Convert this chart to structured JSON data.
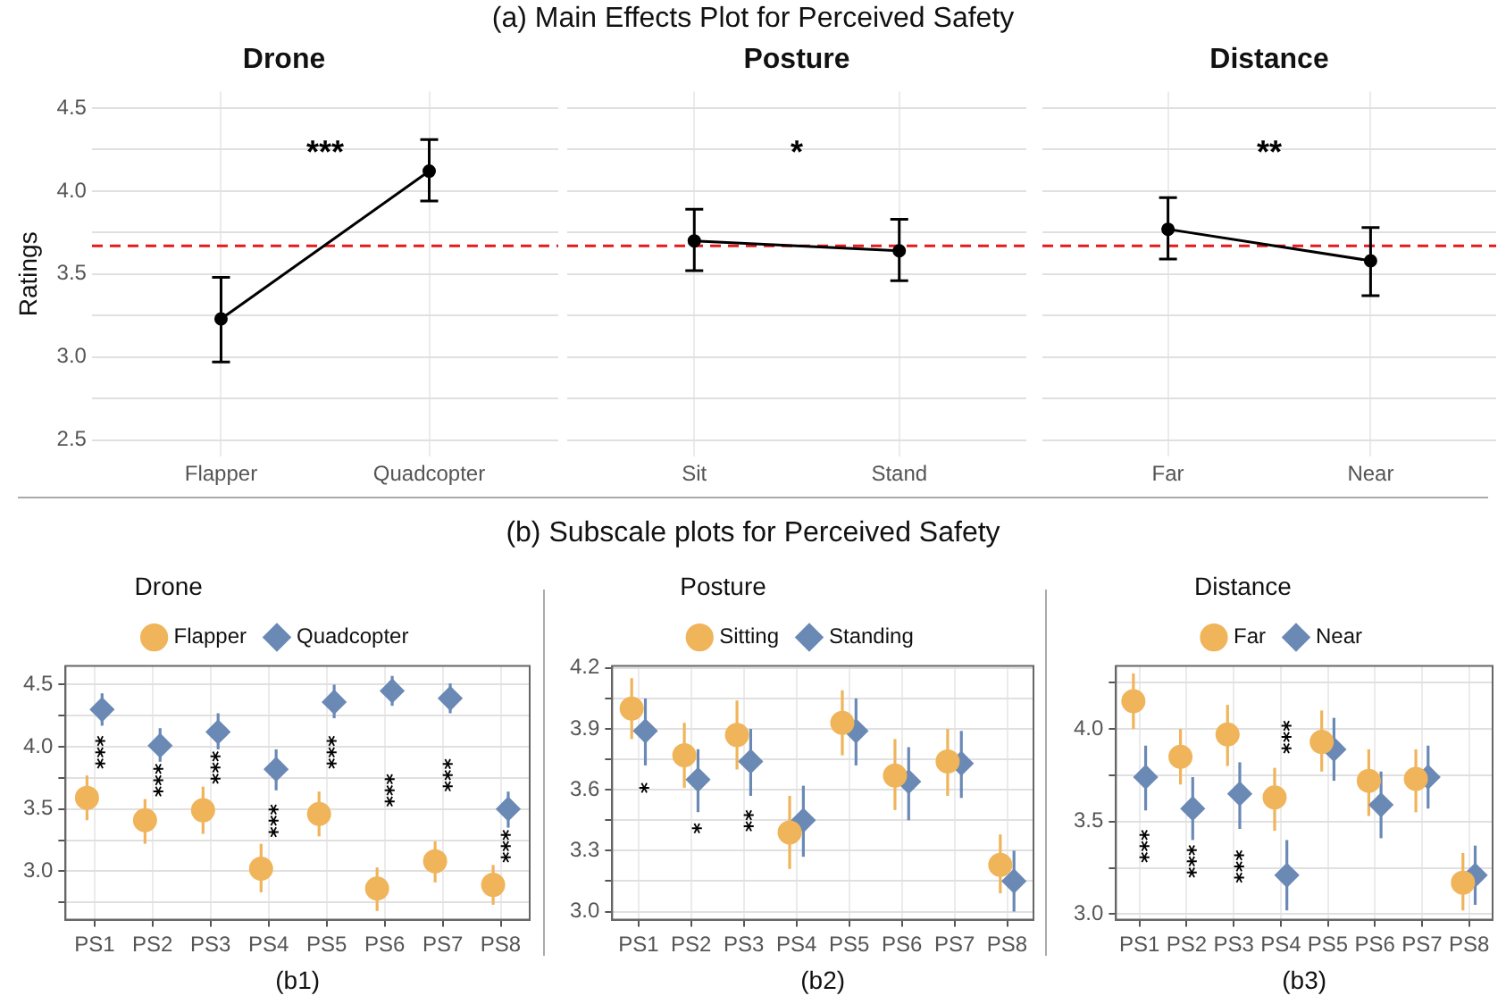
{
  "chart_data": [
    {
      "type": "line",
      "title": "Drone",
      "ylabel": "Ratings",
      "annotations": [
        "(a) Main Effects Plot for Perceived Safety",
        "***"
      ],
      "categories": [
        "Flapper",
        "Quadcopter"
      ],
      "marker": "circle",
      "line_style": "solid",
      "grid": true,
      "series": [
        {
          "color": "#000000",
          "values": [
            3.23,
            4.12
          ],
          "errors": [
            [
              2.97,
              3.48
            ],
            [
              3.94,
              4.31
            ]
          ]
        }
      ],
      "ylim": [
        2.4,
        4.6
      ],
      "yticks": [
        2.5,
        {
          "value": 2.75,
          "label": null
        },
        {
          "value": 3,
          "label": "3.0"
        },
        {
          "value": 3.25,
          "label": null
        },
        3.5,
        {
          "value": 3.75,
          "label": null
        },
        {
          "value": 4,
          "label": "4.0"
        },
        {
          "value": 4.25,
          "label": null
        },
        4.5
      ],
      "ref_lines": [
        {
          "axis": "y",
          "value": 3.67,
          "color": "#e41a1c",
          "line_style": "dashed"
        }
      ]
    },
    {
      "type": "line",
      "title": "Posture",
      "annotations": [
        "*"
      ],
      "categories": [
        "Sit",
        "Stand"
      ],
      "marker": "circle",
      "line_style": "solid",
      "grid": true,
      "tick_labels": "x",
      "series": [
        {
          "color": "#000000",
          "values": [
            3.7,
            3.64
          ],
          "errors": [
            [
              3.52,
              3.89
            ],
            [
              3.46,
              3.83
            ]
          ]
        }
      ],
      "ylim": [
        2.4,
        4.6
      ],
      "yticks": [
        2.5,
        {
          "value": 2.75,
          "label": null
        },
        3.0,
        {
          "value": 3.25,
          "label": null
        },
        3.5,
        {
          "value": 3.75,
          "label": null
        },
        4.0,
        {
          "value": 4.25,
          "label": null
        },
        4.5
      ],
      "ref_lines": [
        {
          "axis": "y",
          "value": 3.67,
          "color": "#e41a1c",
          "line_style": "dashed"
        }
      ]
    },
    {
      "type": "line",
      "title": "Distance",
      "annotations": [
        "**"
      ],
      "categories": [
        "Far",
        "Near"
      ],
      "marker": "circle",
      "line_style": "solid",
      "grid": true,
      "tick_labels": "x",
      "series": [
        {
          "color": "#000000",
          "values": [
            3.77,
            3.58
          ],
          "errors": [
            [
              3.59,
              3.96
            ],
            [
              3.37,
              3.78
            ]
          ]
        }
      ],
      "ylim": [
        2.4,
        4.6
      ],
      "yticks": [
        2.5,
        {
          "value": 2.75,
          "label": null
        },
        3.0,
        {
          "value": 3.25,
          "label": null
        },
        3.5,
        {
          "value": 3.75,
          "label": null
        },
        4.0,
        {
          "value": 4.25,
          "label": null
        },
        4.5
      ],
      "ref_lines": [
        {
          "axis": "y",
          "value": 3.67,
          "color": "#e41a1c",
          "line_style": "dashed"
        }
      ]
    },
    {
      "type": "scatter",
      "xlabel": "(b1)",
      "legend": "top",
      "legend_title": "Drone",
      "grid": true,
      "annotations": [
        "(b) Subscale plots for Perceived Safety",
        "***",
        "***",
        "***",
        "***",
        "***",
        "***",
        "***",
        "***"
      ],
      "categories": [
        "PS1",
        "PS2",
        "PS3",
        "PS4",
        "PS5",
        "PS6",
        "PS7",
        "PS8"
      ],
      "series": [
        {
          "name": "Flapper",
          "color": "#f0b45a",
          "marker": "circle",
          "values": [
            3.59,
            3.41,
            3.49,
            3.02,
            3.46,
            2.86,
            3.08,
            2.89
          ],
          "errors": [
            [
              3.41,
              3.77
            ],
            [
              3.22,
              3.58
            ],
            [
              3.3,
              3.68
            ],
            [
              2.83,
              3.22
            ],
            [
              3.28,
              3.64
            ],
            [
              2.68,
              3.03
            ],
            [
              2.91,
              3.24
            ],
            [
              2.73,
              3.05
            ]
          ]
        },
        {
          "name": "Quadcopter",
          "color": "#6a89b5",
          "marker": "diamond",
          "values": [
            4.3,
            4.01,
            4.12,
            3.82,
            4.36,
            4.45,
            4.39,
            3.5
          ],
          "errors": [
            [
              4.17,
              4.43
            ],
            [
              3.88,
              4.15
            ],
            [
              3.98,
              4.27
            ],
            [
              3.65,
              3.98
            ],
            [
              4.23,
              4.5
            ],
            [
              4.33,
              4.57
            ],
            [
              4.27,
              4.51
            ],
            [
              3.35,
              3.64
            ]
          ]
        }
      ],
      "ylim": [
        2.61,
        4.65
      ],
      "yticks": [
        {
          "value": 2.75,
          "label": null
        },
        {
          "value": 3,
          "label": "3.0"
        },
        {
          "value": 3.25,
          "label": null
        },
        3.5,
        {
          "value": 3.75,
          "label": null
        },
        {
          "value": 4,
          "label": "4.0"
        },
        {
          "value": 4.25,
          "label": null
        },
        4.5
      ]
    },
    {
      "type": "scatter",
      "xlabel": "(b2)",
      "legend": "top",
      "legend_title": "Posture",
      "grid": true,
      "annotations": [
        "*",
        "*",
        "**"
      ],
      "categories": [
        "PS1",
        "PS2",
        "PS3",
        "PS4",
        "PS5",
        "PS6",
        "PS7",
        "PS8"
      ],
      "series": [
        {
          "name": "Sitting",
          "color": "#f0b45a",
          "marker": "circle",
          "values": [
            4.0,
            3.77,
            3.87,
            3.39,
            3.93,
            3.67,
            3.74,
            3.23
          ],
          "errors": [
            [
              3.85,
              4.15
            ],
            [
              3.61,
              3.93
            ],
            [
              3.7,
              4.04
            ],
            [
              3.21,
              3.57
            ],
            [
              3.77,
              4.09
            ],
            [
              3.5,
              3.85
            ],
            [
              3.57,
              3.9
            ],
            [
              3.09,
              3.38
            ]
          ]
        },
        {
          "name": "Standing",
          "color": "#6a89b5",
          "marker": "diamond",
          "values": [
            3.89,
            3.65,
            3.74,
            3.45,
            3.89,
            3.64,
            3.73,
            3.15
          ],
          "errors": [
            [
              3.72,
              4.05
            ],
            [
              3.49,
              3.8
            ],
            [
              3.57,
              3.9
            ],
            [
              3.27,
              3.62
            ],
            [
              3.72,
              4.05
            ],
            [
              3.45,
              3.81
            ],
            [
              3.56,
              3.89
            ],
            [
              3.0,
              3.3
            ]
          ]
        }
      ],
      "ylim": [
        2.96,
        4.21
      ],
      "yticks": [
        {
          "value": 3,
          "label": "3.0"
        },
        {
          "value": 3.15,
          "label": null
        },
        3.3,
        {
          "value": 3.45,
          "label": null
        },
        3.6,
        {
          "value": 3.75,
          "label": null
        },
        3.9,
        {
          "value": 4.05,
          "label": null
        },
        4.2
      ]
    },
    {
      "type": "scatter",
      "xlabel": "(b3)",
      "legend": "top",
      "legend_title": "Distance",
      "grid": true,
      "annotations": [
        "***",
        "***",
        "***",
        "***"
      ],
      "categories": [
        "PS1",
        "PS2",
        "PS3",
        "PS4",
        "PS5",
        "PS6",
        "PS7",
        "PS8"
      ],
      "series": [
        {
          "name": "Far",
          "color": "#f0b45a",
          "marker": "circle",
          "values": [
            4.15,
            3.85,
            3.97,
            3.63,
            3.93,
            3.72,
            3.73,
            3.17
          ],
          "errors": [
            [
              4.0,
              4.3
            ],
            [
              3.7,
              4.0
            ],
            [
              3.8,
              4.13
            ],
            [
              3.45,
              3.79
            ],
            [
              3.77,
              4.1
            ],
            [
              3.53,
              3.89
            ],
            [
              3.55,
              3.89
            ],
            [
              3.02,
              3.33
            ]
          ]
        },
        {
          "name": "Near",
          "color": "#6a89b5",
          "marker": "diamond",
          "values": [
            3.74,
            3.57,
            3.65,
            3.21,
            3.89,
            3.59,
            3.74,
            3.21
          ],
          "errors": [
            [
              3.56,
              3.91
            ],
            [
              3.4,
              3.74
            ],
            [
              3.46,
              3.82
            ],
            [
              3.02,
              3.4
            ],
            [
              3.72,
              4.06
            ],
            [
              3.41,
              3.77
            ],
            [
              3.57,
              3.91
            ],
            [
              3.05,
              3.37
            ]
          ]
        }
      ],
      "ylim": [
        2.97,
        4.34
      ],
      "yticks": [
        {
          "value": 3,
          "label": "3.0"
        },
        {
          "value": 3.25,
          "label": null
        },
        3.5,
        {
          "value": 3.75,
          "label": null
        },
        {
          "value": 4,
          "label": "4.0"
        },
        {
          "value": 4.25,
          "label": null
        }
      ]
    }
  ]
}
